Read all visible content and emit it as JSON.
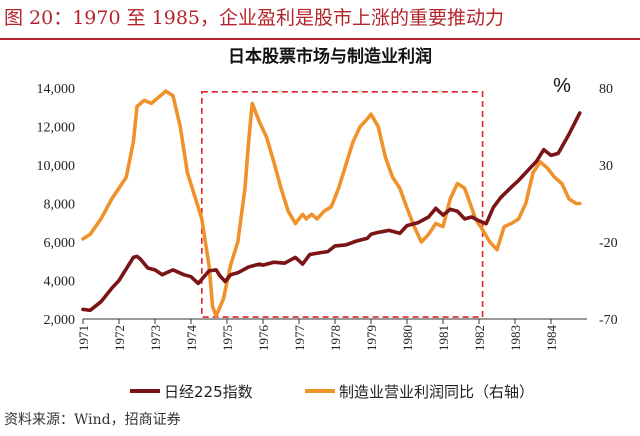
{
  "header": {
    "figure_title": "图 20：1970 至 1985，企业盈利是股市上涨的重要推动力"
  },
  "source": "资料来源：Wind，招商证券",
  "colors": {
    "title_red": "#b3252a",
    "nikkei": "#7a1416",
    "profit": "#f0922b",
    "highlight_box": "#e0242a"
  },
  "chart_data": {
    "type": "line",
    "title": "日本股票市场与制造业利润",
    "y_left": {
      "range": [
        2000,
        14000
      ],
      "ticks": [
        "2,000",
        "4,000",
        "6,000",
        "8,000",
        "10,000",
        "12,000",
        "14,000"
      ],
      "tick_values": [
        2000,
        4000,
        6000,
        8000,
        10000,
        12000,
        14000
      ]
    },
    "y_right": {
      "label": "%",
      "range": [
        -70,
        80
      ],
      "ticks": [
        "-70",
        "-20",
        "30",
        "80"
      ],
      "tick_values": [
        -70,
        -20,
        30,
        80
      ]
    },
    "x": {
      "range": [
        1971,
        1985
      ],
      "tick_labels": [
        "1971",
        "1972",
        "1973",
        "1974",
        "1975",
        "1976",
        "1977",
        "1978",
        "1979",
        "1980",
        "1981",
        "1982",
        "1983",
        "1984"
      ],
      "tick_values": [
        1971,
        1972,
        1973,
        1974,
        1975,
        1976,
        1977,
        1978,
        1979,
        1980,
        1981,
        1982,
        1983,
        1984
      ]
    },
    "highlight": {
      "x_range": [
        1974.3,
        1982.1
      ],
      "y_range": [
        2100,
        13800
      ],
      "style": "dashed"
    },
    "series": [
      {
        "name": "日经225指数",
        "axis": "left",
        "points": [
          [
            1971.0,
            2500
          ],
          [
            1971.2,
            2450
          ],
          [
            1971.5,
            2900
          ],
          [
            1971.8,
            3600
          ],
          [
            1972.0,
            4000
          ],
          [
            1972.2,
            4600
          ],
          [
            1972.4,
            5200
          ],
          [
            1972.5,
            5250
          ],
          [
            1972.6,
            5100
          ],
          [
            1972.8,
            4650
          ],
          [
            1973.0,
            4550
          ],
          [
            1973.2,
            4300
          ],
          [
            1973.5,
            4550
          ],
          [
            1973.8,
            4300
          ],
          [
            1974.0,
            4200
          ],
          [
            1974.2,
            3850
          ],
          [
            1974.5,
            4500
          ],
          [
            1974.7,
            4550
          ],
          [
            1974.8,
            4250
          ],
          [
            1974.95,
            3950
          ],
          [
            1975.1,
            4300
          ],
          [
            1975.3,
            4400
          ],
          [
            1975.6,
            4700
          ],
          [
            1975.9,
            4850
          ],
          [
            1976.0,
            4800
          ],
          [
            1976.3,
            4950
          ],
          [
            1976.6,
            4900
          ],
          [
            1976.8,
            5100
          ],
          [
            1976.9,
            5200
          ],
          [
            1977.1,
            4850
          ],
          [
            1977.3,
            5350
          ],
          [
            1977.6,
            5450
          ],
          [
            1977.8,
            5500
          ],
          [
            1978.0,
            5800
          ],
          [
            1978.3,
            5850
          ],
          [
            1978.6,
            6050
          ],
          [
            1978.9,
            6200
          ],
          [
            1979.0,
            6400
          ],
          [
            1979.2,
            6500
          ],
          [
            1979.5,
            6600
          ],
          [
            1979.8,
            6450
          ],
          [
            1980.0,
            6850
          ],
          [
            1980.3,
            7000
          ],
          [
            1980.6,
            7300
          ],
          [
            1980.8,
            7750
          ],
          [
            1981.0,
            7400
          ],
          [
            1981.2,
            7700
          ],
          [
            1981.4,
            7600
          ],
          [
            1981.6,
            7200
          ],
          [
            1981.8,
            7300
          ],
          [
            1982.0,
            7100
          ],
          [
            1982.2,
            6950
          ],
          [
            1982.4,
            7800
          ],
          [
            1982.6,
            8300
          ],
          [
            1982.9,
            8850
          ],
          [
            1983.1,
            9200
          ],
          [
            1983.4,
            9800
          ],
          [
            1983.6,
            10200
          ],
          [
            1983.8,
            10800
          ],
          [
            1984.0,
            10500
          ],
          [
            1984.2,
            10600
          ],
          [
            1984.5,
            11600
          ],
          [
            1984.8,
            12700
          ]
        ]
      },
      {
        "name": "制造业营业利润同比（右轴）",
        "axis": "right",
        "points": [
          [
            1971.0,
            -18
          ],
          [
            1971.2,
            -15
          ],
          [
            1971.5,
            -5
          ],
          [
            1971.8,
            8
          ],
          [
            1972.0,
            15
          ],
          [
            1972.2,
            22
          ],
          [
            1972.4,
            45
          ],
          [
            1972.5,
            68
          ],
          [
            1972.7,
            72
          ],
          [
            1972.9,
            70
          ],
          [
            1973.0,
            72
          ],
          [
            1973.2,
            76
          ],
          [
            1973.3,
            78
          ],
          [
            1973.5,
            75
          ],
          [
            1973.7,
            55
          ],
          [
            1973.9,
            25
          ],
          [
            1974.1,
            10
          ],
          [
            1974.3,
            -5
          ],
          [
            1974.5,
            -35
          ],
          [
            1974.6,
            -62
          ],
          [
            1974.7,
            -68
          ],
          [
            1974.9,
            -57
          ],
          [
            1975.1,
            -35
          ],
          [
            1975.3,
            -20
          ],
          [
            1975.5,
            15
          ],
          [
            1975.6,
            45
          ],
          [
            1975.7,
            70
          ],
          [
            1975.9,
            58
          ],
          [
            1976.1,
            48
          ],
          [
            1976.3,
            32
          ],
          [
            1976.5,
            15
          ],
          [
            1976.7,
            0
          ],
          [
            1976.9,
            -8
          ],
          [
            1977.0,
            -5
          ],
          [
            1977.1,
            -2
          ],
          [
            1977.2,
            -5
          ],
          [
            1977.35,
            -2
          ],
          [
            1977.5,
            -5
          ],
          [
            1977.7,
            0
          ],
          [
            1977.9,
            3
          ],
          [
            1978.1,
            15
          ],
          [
            1978.3,
            30
          ],
          [
            1978.5,
            45
          ],
          [
            1978.7,
            55
          ],
          [
            1978.9,
            60
          ],
          [
            1979.0,
            63
          ],
          [
            1979.2,
            55
          ],
          [
            1979.4,
            35
          ],
          [
            1979.6,
            22
          ],
          [
            1979.8,
            15
          ],
          [
            1980.0,
            2
          ],
          [
            1980.2,
            -10
          ],
          [
            1980.4,
            -20
          ],
          [
            1980.6,
            -15
          ],
          [
            1980.8,
            -8
          ],
          [
            1981.0,
            -10
          ],
          [
            1981.2,
            8
          ],
          [
            1981.4,
            18
          ],
          [
            1981.6,
            15
          ],
          [
            1981.8,
            2
          ],
          [
            1981.9,
            -5
          ],
          [
            1982.1,
            -12
          ],
          [
            1982.3,
            -20
          ],
          [
            1982.5,
            -25
          ],
          [
            1982.7,
            -10
          ],
          [
            1982.9,
            -8
          ],
          [
            1983.1,
            -5
          ],
          [
            1983.3,
            5
          ],
          [
            1983.5,
            25
          ],
          [
            1983.7,
            32
          ],
          [
            1983.9,
            28
          ],
          [
            1984.1,
            22
          ],
          [
            1984.3,
            18
          ],
          [
            1984.5,
            8
          ],
          [
            1984.7,
            5
          ],
          [
            1984.8,
            5
          ]
        ]
      }
    ],
    "legend": {
      "placement": "bottom"
    }
  }
}
